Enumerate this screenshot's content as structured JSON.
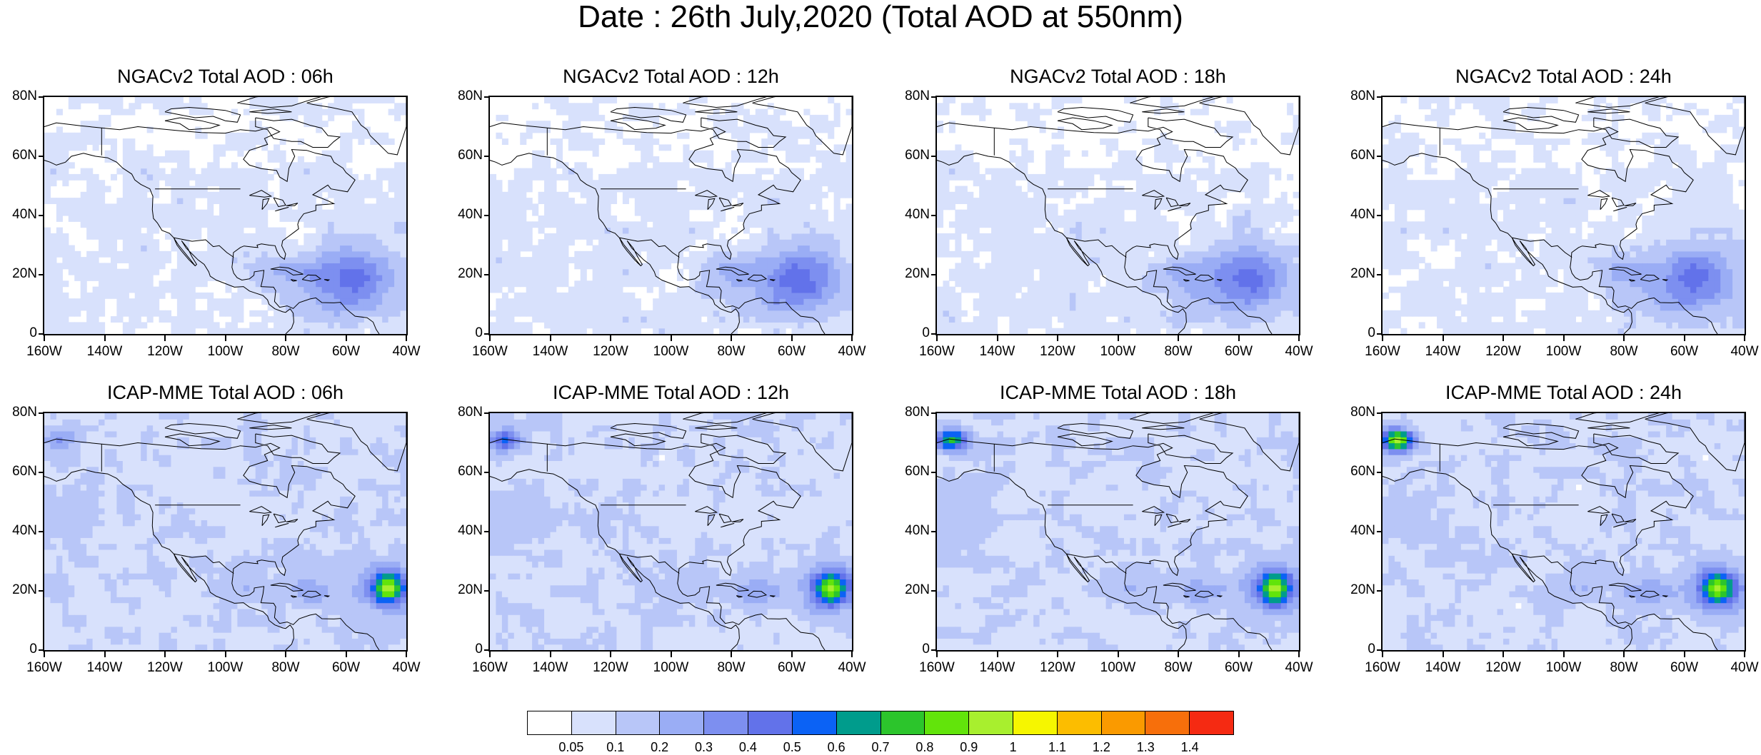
{
  "title": "Date : 26th July,2020 (Total AOD at 550nm)",
  "panels": [
    {
      "title": "NGACv2 Total AOD : 06h",
      "hours": 6,
      "model": "NGACv2"
    },
    {
      "title": "NGACv2 Total AOD : 12h",
      "hours": 12,
      "model": "NGACv2"
    },
    {
      "title": "NGACv2 Total AOD : 18h",
      "hours": 18,
      "model": "NGACv2"
    },
    {
      "title": "NGACv2 Total AOD : 24h",
      "hours": 24,
      "model": "NGACv2"
    },
    {
      "title": "ICAP-MME Total AOD : 06h",
      "hours": 6,
      "model": "ICAP-MME"
    },
    {
      "title": "ICAP-MME Total AOD : 12h",
      "hours": 12,
      "model": "ICAP-MME"
    },
    {
      "title": "ICAP-MME Total AOD : 18h",
      "hours": 18,
      "model": "ICAP-MME"
    },
    {
      "title": "ICAP-MME Total AOD : 24h",
      "hours": 24,
      "model": "ICAP-MME"
    }
  ],
  "axes": {
    "lat_labels": [
      "80N",
      "60N",
      "40N",
      "20N",
      "0"
    ],
    "lat_values": [
      80,
      60,
      40,
      20,
      0
    ],
    "lon_labels": [
      "160W",
      "140W",
      "120W",
      "100W",
      "80W",
      "60W",
      "40W"
    ],
    "lon_values": [
      -160,
      -140,
      -120,
      -100,
      -80,
      -60,
      -40
    ]
  },
  "colorbar": {
    "labels": [
      "0.05",
      "0.1",
      "0.2",
      "0.3",
      "0.4",
      "0.5",
      "0.6",
      "0.7",
      "0.8",
      "0.9",
      "1",
      "1.1",
      "1.2",
      "1.3",
      "1.4"
    ],
    "colors": [
      "#ffffff",
      "#d8e1fc",
      "#b8c6f8",
      "#9aadf5",
      "#7d8ff0",
      "#6272ea",
      "#0b62f5",
      "#009c8c",
      "#2cc52c",
      "#62e40b",
      "#a8ef2e",
      "#f6f600",
      "#fcbd00",
      "#fa9a00",
      "#f76f0b",
      "#f52a12"
    ]
  }
}
